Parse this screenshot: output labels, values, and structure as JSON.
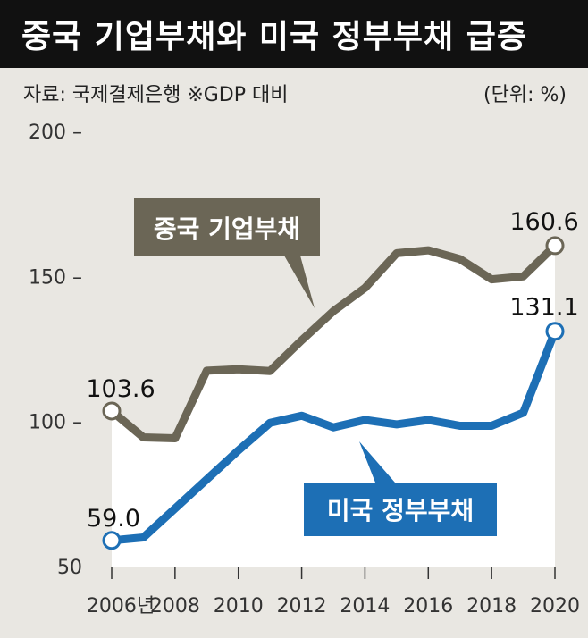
{
  "title": "중국 기업부채와 미국 정부부채 급증",
  "source": "자료: 국제결제은행  ※GDP 대비",
  "unit": "(단위: %)",
  "colors": {
    "china": "#6b6656",
    "us": "#1d6fb5",
    "background": "#e9e7e2",
    "plot_fill": "#ffffff",
    "title_bg": "#111111"
  },
  "chart_data": {
    "type": "line",
    "x": [
      2006,
      2007,
      2008,
      2009,
      2010,
      2011,
      2012,
      2013,
      2014,
      2015,
      2016,
      2017,
      2018,
      2019,
      2020
    ],
    "x_tick_labels": [
      "2006년",
      "2008",
      "2010",
      "2012",
      "2014",
      "2016",
      "2018",
      "2020"
    ],
    "y_ticks": [
      "200 –",
      "150 –",
      "100 –",
      "50"
    ],
    "ylim": [
      50,
      200
    ],
    "series": [
      {
        "name": "중국 기업부채",
        "values": [
          103.6,
          94.5,
          94.2,
          117.5,
          118.0,
          117.4,
          128.0,
          138.0,
          146.0,
          158.0,
          159.0,
          156.0,
          149.0,
          150.0,
          160.6
        ],
        "start_label": "103.6",
        "end_label": "160.6"
      },
      {
        "name": "미국 정부부채",
        "values": [
          59.0,
          60.0,
          70.0,
          80.0,
          90.0,
          99.5,
          102.0,
          98.0,
          100.5,
          99.0,
          100.5,
          98.5,
          98.5,
          103.0,
          131.1
        ],
        "start_label": "59.0",
        "end_label": "131.1"
      }
    ]
  }
}
